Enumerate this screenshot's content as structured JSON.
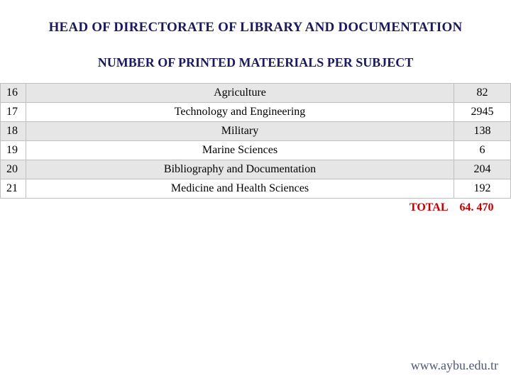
{
  "header": "HEAD OF DIRECTORATE OF LIBRARY AND DOCUMENTATION",
  "subheader": "NUMBER OF PRINTED MATEERIALS PER SUBJECT",
  "rows": [
    {
      "idx": "16",
      "subject": "Agriculture",
      "value": "82"
    },
    {
      "idx": "17",
      "subject": "Technology and Engineering",
      "value": "2945"
    },
    {
      "idx": "18",
      "subject": "Military",
      "value": "138"
    },
    {
      "idx": "19",
      "subject": "Marine Sciences",
      "value": "6"
    },
    {
      "idx": "20",
      "subject": "Bibliography and Documentation",
      "value": "204"
    },
    {
      "idx": "21",
      "subject": "Medicine and Health Sciences",
      "value": "192"
    }
  ],
  "total": {
    "label": "TOTAL",
    "value": "64. 470"
  },
  "footer": "www.aybu.edu.tr",
  "colors": {
    "heading": "#1a1a5c",
    "row_odd": "#e6e6e6",
    "row_even": "#ffffff",
    "border": "#bfbfbf",
    "total": "#c00000",
    "footer": "#50587a"
  }
}
